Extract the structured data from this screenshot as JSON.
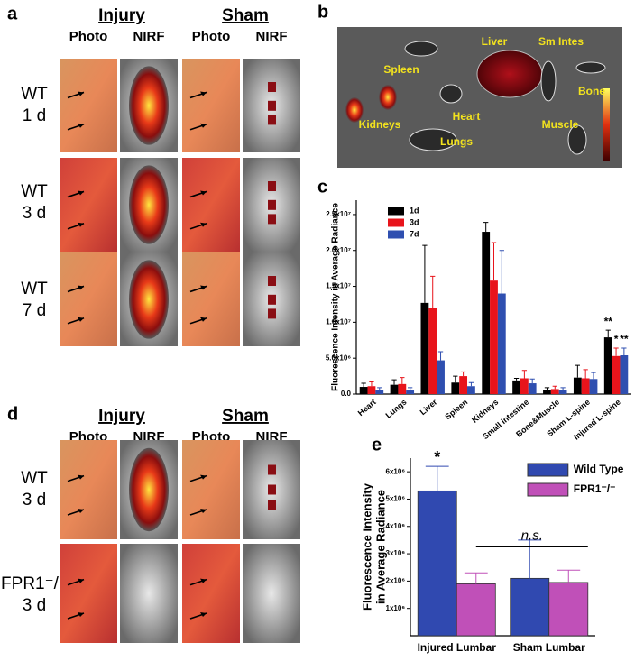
{
  "panels": {
    "a": {
      "label": "a",
      "headers": [
        "Injury",
        "Sham"
      ],
      "columns": [
        "Photo",
        "NIRF",
        "Photo",
        "NIRF"
      ],
      "rows": [
        [
          "WT",
          "1 d"
        ],
        [
          "WT",
          "3 d"
        ],
        [
          "WT",
          "7 d"
        ]
      ]
    },
    "b": {
      "label": "b",
      "organs": [
        "Spleen",
        "Liver",
        "Sm Intes",
        "Bone",
        "Kidneys",
        "Heart",
        "Muscle",
        "Lungs"
      ]
    },
    "c": {
      "label": "c"
    },
    "d": {
      "label": "d",
      "headers": [
        "Injury",
        "Sham"
      ],
      "columns": [
        "Photo",
        "NIRF",
        "Photo",
        "NIRF"
      ],
      "rows": [
        [
          "WT",
          "3 d"
        ],
        [
          "FPR1⁻/⁻",
          "3 d"
        ]
      ]
    },
    "e": {
      "label": "e"
    }
  },
  "chart_data": [
    {
      "type": "bar",
      "ylabel": [
        "Fluorescence Intensity in Average Radiance"
      ],
      "categories": [
        "Heart",
        "Lungs",
        "Liver",
        "Spleen",
        "Kidneys",
        "Small intestine",
        "Bone&Muscle",
        "Sham L-spine",
        "Injured L-spine"
      ],
      "series": [
        {
          "name": "1d",
          "color": "#000000",
          "values": [
            1000000,
            1300000,
            12700000,
            1600000,
            22600000,
            1900000,
            600000,
            2300000,
            7900000
          ],
          "errors": [
            500000,
            700000,
            8000000,
            900000,
            1300000,
            300000,
            300000,
            1700000,
            1000000
          ]
        },
        {
          "name": "3d",
          "color": "#e8141b",
          "values": [
            1100000,
            1400000,
            12000000,
            2500000,
            15800000,
            2200000,
            700000,
            2200000,
            5300000
          ],
          "errors": [
            600000,
            900000,
            4400000,
            600000,
            5300000,
            1100000,
            400000,
            1200000,
            1100000
          ]
        },
        {
          "name": "7d",
          "color": "#2f4fb0",
          "values": [
            600000,
            500000,
            4700000,
            1100000,
            14000000,
            1500000,
            600000,
            2100000,
            5400000
          ],
          "errors": [
            300000,
            400000,
            1200000,
            500000,
            6000000,
            600000,
            300000,
            900000,
            1000000
          ]
        }
      ],
      "ylim": [
        0,
        27000000
      ],
      "yticks": [
        {
          "value": 0,
          "label": "0.0"
        },
        {
          "value": 5000000,
          "label": "5.0x10⁶"
        },
        {
          "value": 10000000,
          "label": "1.0x10⁷"
        },
        {
          "value": 15000000,
          "label": "1.5x10⁷"
        },
        {
          "value": 20000000,
          "label": "2.0x10⁷"
        },
        {
          "value": 25000000,
          "label": "2.5x10⁷"
        }
      ],
      "legend": "upper left",
      "annotations": [
        {
          "text": "**",
          "category": "Injured L-spine",
          "series": "1d"
        },
        {
          "text": "*",
          "category": "Injured L-spine",
          "series": "3d"
        },
        {
          "text": "**",
          "category": "Injured L-spine",
          "series": "7d"
        }
      ]
    },
    {
      "type": "bar",
      "ylabel": [
        "Fluorescence Intensity",
        "in Average Radiance"
      ],
      "categories": [
        "Injured Lumbar",
        "Sham Lumbar"
      ],
      "series": [
        {
          "name": "Wild Type",
          "color": "#3049b0",
          "values": [
            5300000,
            2100000
          ],
          "errors": [
            900000,
            1400000
          ]
        },
        {
          "name": "FPR1⁻/⁻",
          "color": "#c050b8",
          "values": [
            1900000,
            1950000
          ],
          "errors": [
            400000,
            450000
          ]
        }
      ],
      "ylim": [
        0,
        6500000
      ],
      "yticks": [
        {
          "value": 1000000,
          "label": "1x10⁶"
        },
        {
          "value": 2000000,
          "label": "2x10⁶"
        },
        {
          "value": 3000000,
          "label": "3x10⁶"
        },
        {
          "value": 4000000,
          "label": "4x10⁶"
        },
        {
          "value": 5000000,
          "label": "5x10⁶"
        },
        {
          "value": 6000000,
          "label": "6x10⁶"
        }
      ],
      "legend": "upper right",
      "annotations": [
        {
          "text": "*",
          "category": "Injured Lumbar",
          "series": "Wild Type"
        },
        {
          "text": "n.s.",
          "category": "Sham Lumbar",
          "series": "FPR1⁻/⁻"
        }
      ]
    }
  ]
}
